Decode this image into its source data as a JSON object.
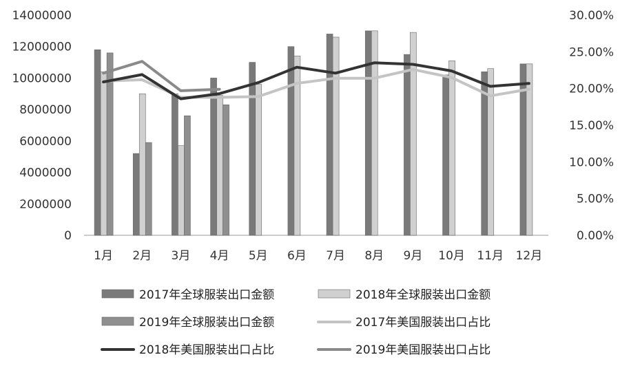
{
  "chart_data": {
    "type": "bar",
    "categories": [
      "1月",
      "2月",
      "3月",
      "4月",
      "5月",
      "6月",
      "7月",
      "8月",
      "9月",
      "10月",
      "11月",
      "12月"
    ],
    "y_left_ticks": [
      "0",
      "2000000",
      "4000000",
      "6000000",
      "8000000",
      "10000000",
      "12000000",
      "14000000"
    ],
    "y_right_ticks": [
      "0.00%",
      "5.00%",
      "10.00%",
      "15.00%",
      "20.00%",
      "25.00%",
      "30.00%"
    ],
    "ylim_left": [
      0,
      14000000
    ],
    "ylim_right": [
      0,
      30
    ],
    "legend_position": "bottom",
    "grid": false,
    "bar_series": [
      {
        "name": "2017年全球服装出口金额",
        "color": "#7a7a7a",
        "values": [
          11800000,
          5200000,
          9000000,
          10000000,
          11000000,
          12000000,
          12800000,
          13000000,
          11500000,
          10200000,
          10400000,
          10900000
        ]
      },
      {
        "name": "2018年全球服装出口金额",
        "color": "#d0d0d0",
        "values": [
          10400000,
          9000000,
          5700000,
          8900000,
          9600000,
          11400000,
          12600000,
          13000000,
          12900000,
          11100000,
          10600000,
          10900000
        ]
      },
      {
        "name": "2019年全球服装出口金额",
        "color": "#8f8f8f",
        "values": [
          11600000,
          5900000,
          7600000,
          8300000,
          null,
          null,
          null,
          null,
          null,
          null,
          null,
          null
        ]
      }
    ],
    "line_series": [
      {
        "name": "2017年美国服装出口占比",
        "color": "#c4c4c4",
        "values": [
          21.0,
          21.2,
          18.8,
          18.8,
          18.9,
          20.7,
          21.4,
          21.4,
          22.6,
          21.5,
          19.0,
          19.9
        ]
      },
      {
        "name": "2018年美国服装出口占比",
        "color": "#333333",
        "values": [
          20.9,
          21.9,
          18.6,
          19.3,
          20.8,
          22.9,
          22.1,
          23.5,
          23.3,
          22.4,
          20.3,
          20.7
        ]
      },
      {
        "name": "2019年美国服装出口占比",
        "color": "#8a8a8a",
        "values": [
          22.1,
          23.7,
          19.7,
          19.9,
          null,
          null,
          null,
          null,
          null,
          null,
          null,
          null
        ]
      }
    ]
  }
}
